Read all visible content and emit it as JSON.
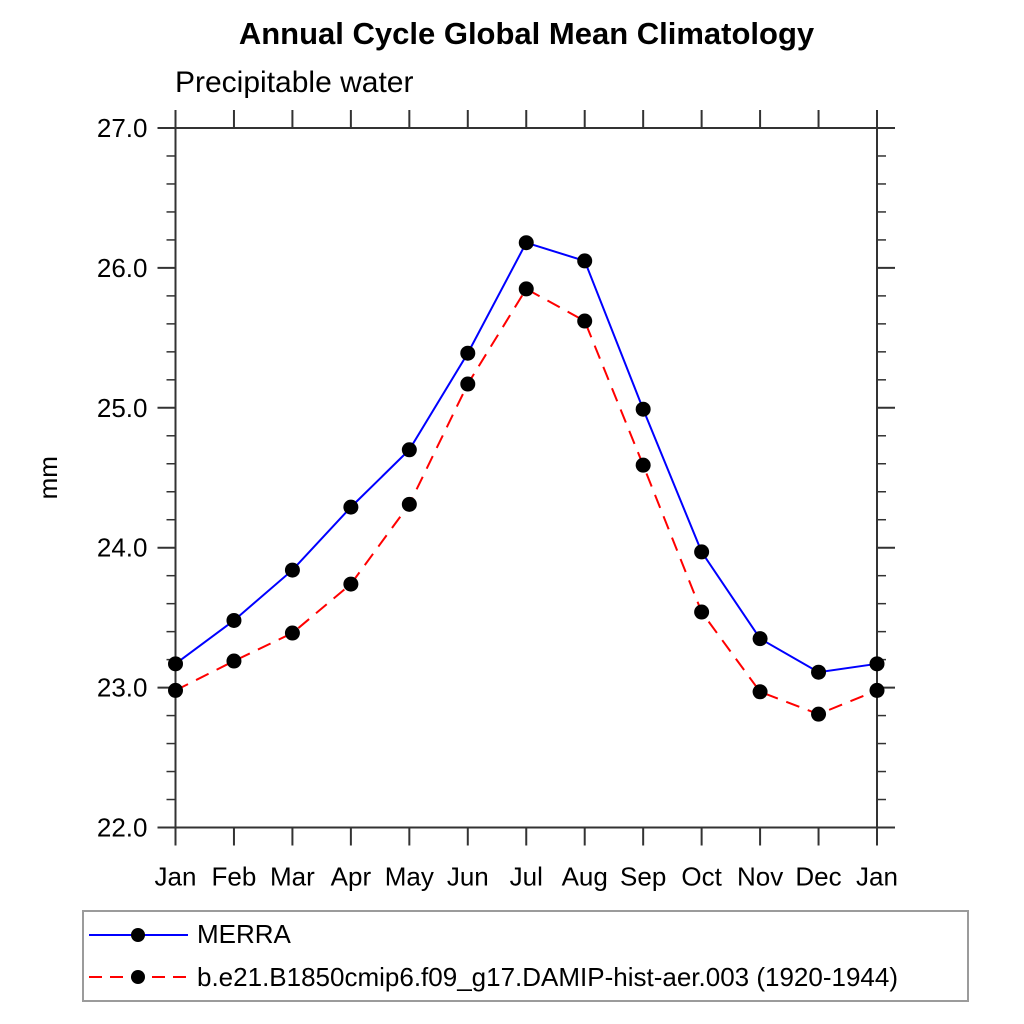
{
  "page": {
    "background": "#ffffff"
  },
  "chart_data": {
    "type": "line",
    "title": "Annual Cycle Global Mean Climatology",
    "subtitle": "Precipitable water",
    "ylabel": "mm",
    "ylim": [
      22.0,
      27.0
    ],
    "ytick_step_major": 1.0,
    "ytick_step_minor": 0.2,
    "ytick_labels": [
      "27.0",
      "26.0",
      "25.0",
      "24.0",
      "23.0",
      "22.0"
    ],
    "categories": [
      "Jan",
      "Feb",
      "Mar",
      "Apr",
      "May",
      "Jun",
      "Jul",
      "Aug",
      "Sep",
      "Oct",
      "Nov",
      "Dec",
      "Jan"
    ],
    "grid": false,
    "legend_position": "bottom-left",
    "axis_color": "#333333",
    "marker_color": "#000000",
    "series": [
      {
        "name": "MERRA",
        "color": "#0000ff",
        "style": "solid",
        "marker": "circle",
        "values": [
          23.17,
          23.48,
          23.84,
          24.29,
          24.7,
          25.39,
          26.18,
          26.05,
          24.99,
          23.97,
          23.35,
          23.11,
          23.17
        ]
      },
      {
        "name": "b.e21.B1850cmip6.f09_g17.DAMIP-hist-aer.003 (1920-1944)",
        "color": "#ff0000",
        "style": "dashed",
        "marker": "circle",
        "values": [
          22.98,
          23.19,
          23.39,
          23.74,
          24.31,
          25.17,
          25.85,
          25.62,
          24.59,
          23.54,
          22.97,
          22.81,
          22.98
        ]
      }
    ]
  }
}
